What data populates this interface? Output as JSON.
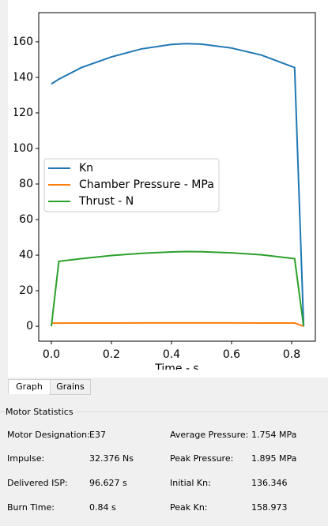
{
  "chart_data": {
    "type": "line",
    "x": [
      0,
      0.025,
      0.1,
      0.2,
      0.3,
      0.4,
      0.45,
      0.5,
      0.6,
      0.7,
      0.81,
      0.84
    ],
    "series": [
      {
        "name": "Kn",
        "color": "#1f77b4",
        "values": [
          136.3,
          139,
          145.5,
          151.5,
          156,
          158.5,
          158.97,
          158.7,
          156.5,
          152.5,
          145.5,
          0
        ]
      },
      {
        "name": "Chamber Pressure - MPa",
        "color": "#ff7f0e",
        "values": [
          1.75,
          1.76,
          1.8,
          1.84,
          1.87,
          1.89,
          1.895,
          1.89,
          1.87,
          1.84,
          1.8,
          0
        ]
      },
      {
        "name": "Thrust - N",
        "color": "#2ca02c",
        "values": [
          0,
          36.5,
          38,
          39.8,
          41,
          41.8,
          42,
          41.9,
          41.3,
          40.2,
          38,
          0
        ]
      }
    ],
    "xlabel": "Time - s",
    "xlim": [
      -0.042,
      0.879
    ],
    "xticks": [
      {
        "value": 0,
        "label": "0.0"
      },
      0.2,
      0.4,
      0.6,
      0.8
    ],
    "ylim": [
      -8.4,
      176.4
    ],
    "yticks": [
      0,
      20,
      40,
      60,
      80,
      100,
      120,
      140,
      160
    ],
    "legend": "center-left"
  },
  "tabs": [
    "Graph",
    "Grains"
  ],
  "stats_title": "Motor Statistics",
  "stats": [
    [
      "Motor Designation:",
      "E37",
      "Average Pressure:",
      "1.754 MPa"
    ],
    [
      "Impulse:",
      "32.376 Ns",
      "Peak Pressure:",
      "1.895 MPa"
    ],
    [
      "Delivered ISP:",
      "96.627 s",
      "Initial Kn:",
      "136.346"
    ],
    [
      "Burn Time:",
      "0.84 s",
      "Peak Kn:",
      "158.973"
    ]
  ]
}
